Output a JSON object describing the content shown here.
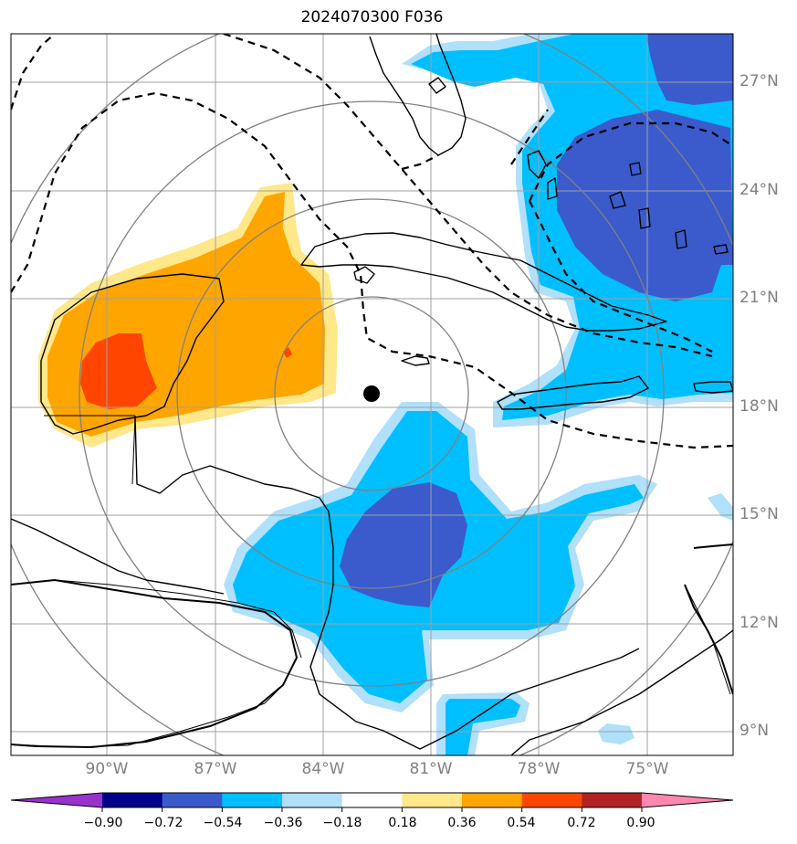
{
  "title": "2024070300 F036",
  "lat_labels": [
    "27°N",
    "24°N",
    "21°N",
    "18°N",
    "15°N",
    "12°N",
    "9°N"
  ],
  "lon_labels": [
    "90°W",
    "87°W",
    "84°W",
    "81°W",
    "78°W",
    "75°W"
  ],
  "colorbar": {
    "tick_labels": [
      "−0.90",
      "−0.72",
      "−0.54",
      "−0.36",
      "−0.18",
      "0.18",
      "0.36",
      "0.54",
      "0.72",
      "0.90"
    ],
    "colors": [
      "#9932cc",
      "#00008b",
      "#3b5bcc",
      "#00bfff",
      "#b0e0fa",
      "#ffffff",
      "#ffe88a",
      "#ffa500",
      "#ff4500",
      "#b22222",
      "#ff88b0"
    ]
  },
  "map_colors": {
    "dark_blue": "#3b5bcc",
    "blue": "#00bfff",
    "light_blue": "#b0e0fa",
    "yellow": "#ffe88a",
    "orange": "#ffa500",
    "red_orange": "#ff4500"
  },
  "center_marker": "storm-center-dot"
}
